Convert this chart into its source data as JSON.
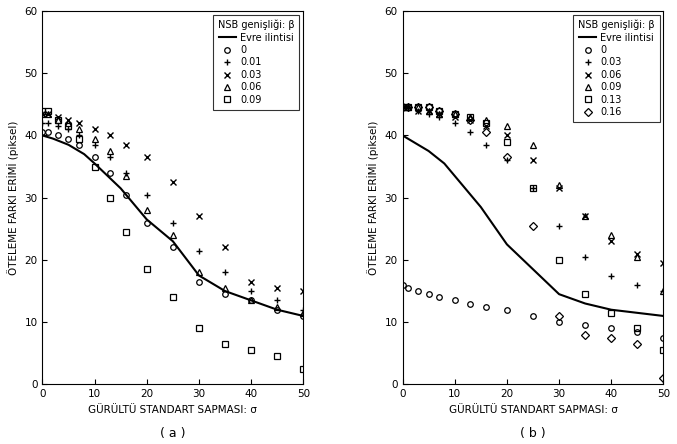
{
  "title_a": "( a )",
  "title_b": "( b )",
  "xlabel": "GÜRÜLTÜ STANDART SAPMASI: σ",
  "ylabel": "ÖTELEME FARKI ERİMİ (piksel)",
  "ylim": [
    0,
    60
  ],
  "xlim": [
    0,
    50
  ],
  "yticks": [
    0,
    10,
    20,
    30,
    40,
    50,
    60
  ],
  "xticks": [
    0,
    10,
    20,
    30,
    40,
    50
  ],
  "sigma_vals": [
    0,
    1,
    3,
    5,
    7,
    10,
    13,
    16,
    20,
    25,
    30,
    35,
    40,
    45,
    50
  ],
  "panel_a": {
    "legend_line": "Evre ilintisi",
    "legend_title": "NSB genişliği: β",
    "series": [
      {
        "label": "0",
        "marker": "o",
        "values": [
          40.5,
          40.5,
          40.0,
          39.5,
          38.5,
          36.5,
          34.0,
          30.5,
          26.0,
          22.0,
          16.5,
          14.5,
          13.5,
          12.0,
          11.0
        ]
      },
      {
        "label": "0.01",
        "marker": "+",
        "values": [
          42.0,
          42.0,
          41.5,
          41.0,
          40.0,
          38.5,
          36.5,
          34.0,
          30.5,
          26.0,
          21.5,
          18.0,
          15.0,
          13.5,
          12.0
        ]
      },
      {
        "label": "0.03",
        "marker": "x",
        "values": [
          43.5,
          43.5,
          43.0,
          42.5,
          42.0,
          41.0,
          40.0,
          38.5,
          36.5,
          32.5,
          27.0,
          22.0,
          16.5,
          15.5,
          15.0
        ]
      },
      {
        "label": "0.06",
        "marker": "^",
        "values": [
          43.5,
          43.5,
          42.5,
          42.0,
          41.0,
          39.5,
          37.5,
          33.5,
          28.0,
          24.0,
          18.0,
          15.5,
          13.5,
          12.5,
          11.5
        ]
      },
      {
        "label": "0.09",
        "marker": "s",
        "values": [
          44.0,
          44.0,
          42.5,
          41.5,
          39.5,
          35.0,
          30.0,
          24.5,
          18.5,
          14.0,
          9.0,
          6.5,
          5.5,
          4.5,
          2.5
        ]
      }
    ],
    "phase_corr": {
      "x": [
        0,
        2,
        5,
        8,
        10,
        15,
        20,
        25,
        30,
        35,
        40,
        45,
        50
      ],
      "y": [
        40.0,
        39.5,
        38.5,
        37.0,
        35.5,
        31.5,
        26.5,
        23.0,
        17.5,
        15.0,
        13.5,
        12.0,
        11.0
      ]
    }
  },
  "panel_b": {
    "legend_line": "Evre ilintisi",
    "legend_title": "NSB genişliği: β",
    "series": [
      {
        "label": "0",
        "marker": "o",
        "values": [
          16.0,
          15.5,
          15.0,
          14.5,
          14.0,
          13.5,
          13.0,
          12.5,
          12.0,
          11.0,
          10.0,
          9.5,
          9.0,
          8.5,
          7.5
        ]
      },
      {
        "label": "0.03",
        "marker": "+",
        "values": [
          44.5,
          44.5,
          44.0,
          43.5,
          43.0,
          42.0,
          40.5,
          38.5,
          36.0,
          31.5,
          25.5,
          20.5,
          17.5,
          16.0,
          15.0
        ]
      },
      {
        "label": "0.06",
        "marker": "x",
        "values": [
          44.5,
          44.5,
          44.0,
          44.0,
          43.5,
          43.0,
          42.5,
          41.5,
          40.0,
          36.0,
          31.5,
          27.0,
          23.0,
          21.0,
          19.5
        ]
      },
      {
        "label": "0.09",
        "marker": "^",
        "values": [
          44.5,
          44.5,
          44.5,
          44.0,
          43.5,
          43.5,
          43.0,
          42.5,
          41.5,
          38.5,
          32.0,
          27.0,
          24.0,
          20.5,
          15.0
        ]
      },
      {
        "label": "0.13",
        "marker": "s",
        "values": [
          44.5,
          44.5,
          44.5,
          44.5,
          44.0,
          43.5,
          43.0,
          42.0,
          39.0,
          31.5,
          20.0,
          14.5,
          11.5,
          9.0,
          5.5
        ]
      },
      {
        "label": "0.16",
        "marker": "D",
        "values": [
          44.5,
          44.5,
          44.5,
          44.5,
          44.0,
          43.5,
          42.5,
          40.5,
          36.5,
          25.5,
          11.0,
          8.0,
          7.5,
          6.5,
          1.0
        ]
      }
    ],
    "phase_corr": {
      "x": [
        0,
        2,
        5,
        8,
        10,
        15,
        20,
        25,
        30,
        35,
        40,
        45,
        50
      ],
      "y": [
        40.0,
        39.0,
        37.5,
        35.5,
        33.5,
        28.5,
        22.5,
        18.5,
        14.5,
        13.0,
        12.0,
        11.5,
        11.0
      ]
    }
  },
  "marker_size": 4,
  "marker_size_x": 5,
  "line_color": "black",
  "marker_color": "black",
  "font_size_label": 7.5,
  "font_size_tick": 7.5,
  "font_size_legend": 7,
  "font_size_subtitle": 9
}
